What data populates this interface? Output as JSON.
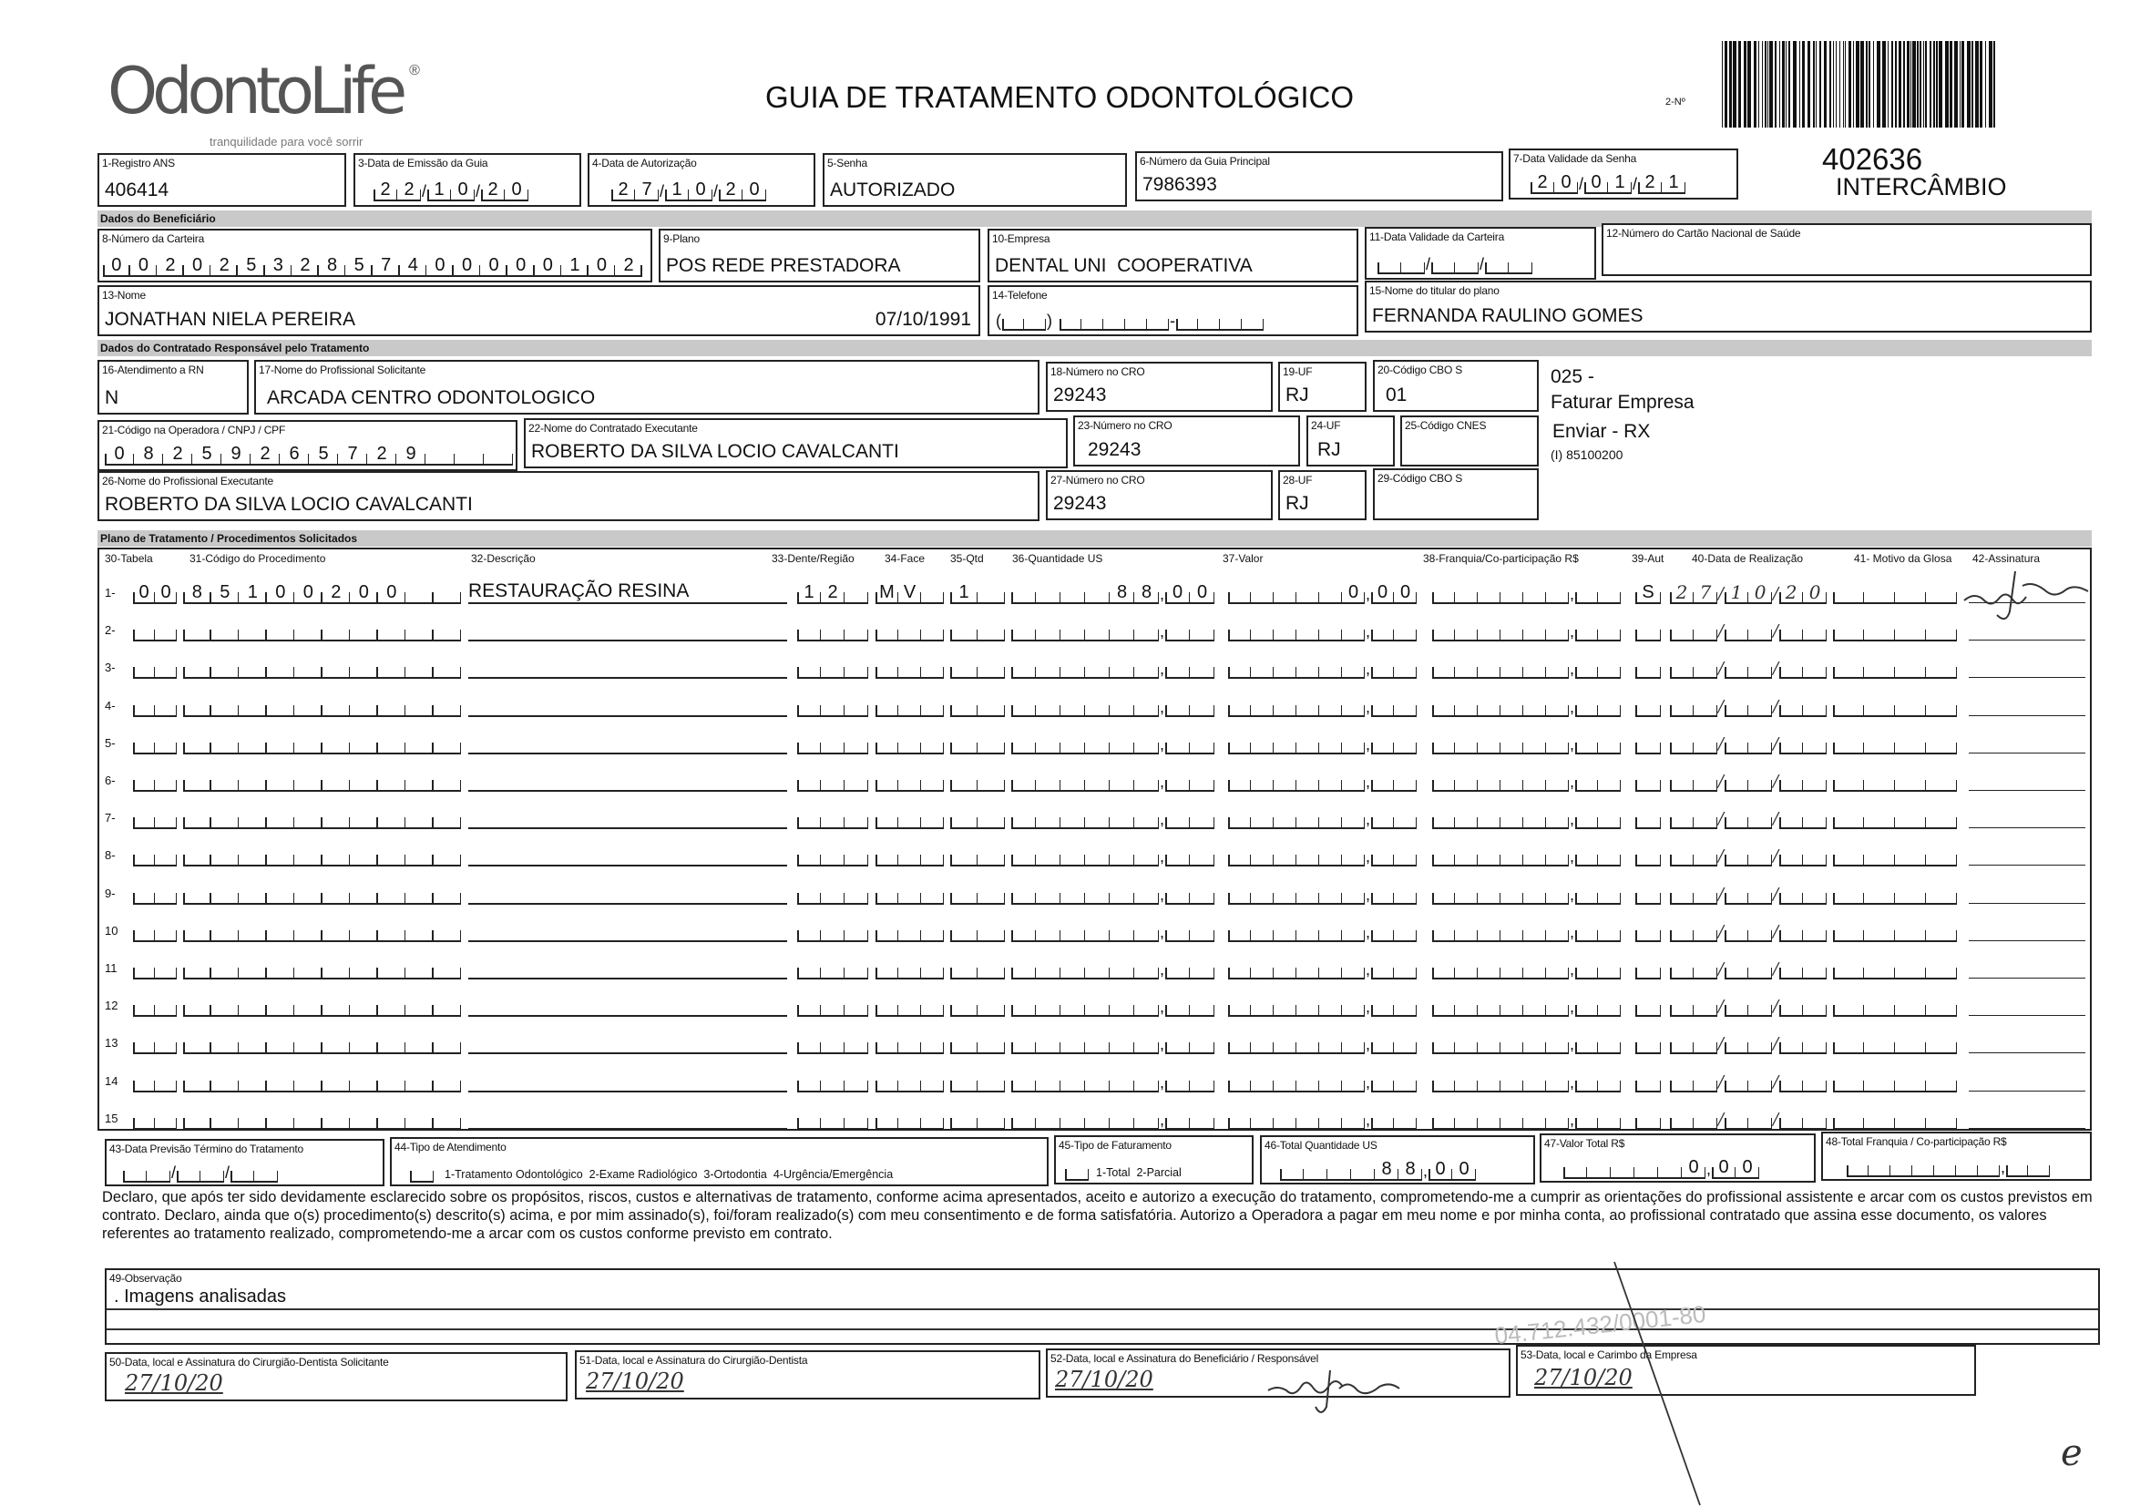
{
  "logo": {
    "brand": "OdontoLife",
    "registered": "®",
    "tagline": "tranquilidade para você sorrir"
  },
  "header": {
    "title": "GUIA DE TRATAMENTO ODONTOLÓGICO",
    "guide_number_label": "2-Nº",
    "side_number": "402636",
    "side_tag": "INTERCÂMBIO"
  },
  "fields": {
    "f1": {
      "label": "1-Registro ANS",
      "value": "406414"
    },
    "f3": {
      "label": "3-Data de Emissão da Guia",
      "value": [
        "22",
        "10",
        "20"
      ]
    },
    "f4": {
      "label": "4-Data de Autorização",
      "value": [
        "27",
        "10",
        "20"
      ]
    },
    "f5": {
      "label": "5-Senha",
      "value": "AUTORIZADO"
    },
    "f6": {
      "label": "6-Número da Guia Principal",
      "value": "7986393"
    },
    "f7": {
      "label": "7-Data Validade da Senha",
      "value": [
        "20",
        "01",
        "21"
      ]
    },
    "f8": {
      "label": "8-Número da Carteira",
      "value": [
        "00202532857400000102"
      ]
    },
    "f9": {
      "label": "9-Plano",
      "value": "POS REDE PRESTADORA"
    },
    "f10": {
      "label": "10-Empresa",
      "value": "DENTAL UNI  COOPERATIVA"
    },
    "f11": {
      "label": "11-Data Validade da Carteira",
      "value": [
        "",
        "",
        ""
      ]
    },
    "f12": {
      "label": "12-Número do Cartão Nacional de Saúde",
      "value": ""
    },
    "f13": {
      "label": "13-Nome",
      "value": "JONATHAN NIELA PEREIRA",
      "birth_date": "07/10/1991"
    },
    "f14": {
      "label": "14-Telefone",
      "value": [
        "",
        "",
        ""
      ]
    },
    "f15": {
      "label": "15-Nome do titular do plano",
      "value": "FERNANDA RAULINO GOMES"
    },
    "f16": {
      "label": "16-Atendimento a RN",
      "value": "N"
    },
    "f17": {
      "label": "17-Nome do Profissional Solicitante",
      "value": "ARCADA CENTRO ODONTOLOGICO"
    },
    "f18": {
      "label": "18-Número no CRO",
      "value": "29243"
    },
    "f19": {
      "label": "19-UF",
      "value": "RJ"
    },
    "f20": {
      "label": "20-Código CBO S",
      "value": "01"
    },
    "f21": {
      "label": "21-Código na Operadora / CNPJ / CPF",
      "value": [
        "08259265729"
      ]
    },
    "f22": {
      "label": "22-Nome do Contratado Executante",
      "value": "ROBERTO DA SILVA LOCIO CAVALCANTI"
    },
    "f23": {
      "label": "23-Número no CRO",
      "value": "29243"
    },
    "f24": {
      "label": "24-UF",
      "value": "RJ"
    },
    "f25": {
      "label": "25-Código CNES",
      "value": ""
    },
    "f26": {
      "label": "26-Nome do Profissional Executante",
      "value": "ROBERTO DA SILVA LOCIO CAVALCANTI"
    },
    "f27": {
      "label": "27-Número no CRO",
      "value": "29243"
    },
    "f28": {
      "label": "28-UF",
      "value": "RJ"
    },
    "f29": {
      "label": "29-Código CBO S",
      "value": ""
    }
  },
  "sections": {
    "beneficiario": "Dados do Beneficiário",
    "contratado": "Dados do Contratado Responsável pelo Tratamento",
    "plano": "Plano de Tratamento / Procedimentos Solicitados"
  },
  "side_notes": [
    "025 -",
    "Faturar Empresa",
    "Enviar - RX",
    "(I) 85100200"
  ],
  "procedures": {
    "columns": [
      "30-Tabela",
      "31-Código do Procedimento",
      "32-Descrição",
      "33-Dente/Região",
      "34-Face",
      "35-Qtd",
      "36-Quantidade US",
      "37-Valor",
      "38-Franquia/Co-participação R$",
      "39-Aut",
      "40-Data de Realização",
      "41- Motivo da Glosa",
      "42-Assinatura"
    ],
    "rows": [
      {
        "n": "1-",
        "tabela": [
          "00"
        ],
        "codigo": [
          "85100200"
        ],
        "descricao": "RESTAURAÇÃO RESINA",
        "dente": "12",
        "face": "MV",
        "qtd": [
          "1"
        ],
        "qtd_us": [
          "88",
          "00"
        ],
        "valor": [
          "0",
          "00"
        ],
        "franquia": [
          "",
          ""
        ],
        "aut": "S",
        "data": [
          "27",
          "10",
          "20"
        ],
        "glosa": [
          ""
        ],
        "signed": true
      },
      {
        "n": "2-"
      },
      {
        "n": "3-"
      },
      {
        "n": "4-"
      },
      {
        "n": "5-"
      },
      {
        "n": "6-"
      },
      {
        "n": "7-"
      },
      {
        "n": "8-"
      },
      {
        "n": "9-"
      },
      {
        "n": "10"
      },
      {
        "n": "11"
      },
      {
        "n": "12"
      },
      {
        "n": "13"
      },
      {
        "n": "14"
      },
      {
        "n": "15"
      }
    ]
  },
  "totals": {
    "f43": {
      "label": "43-Data Previsão Término do Tratamento",
      "value": [
        "",
        "",
        ""
      ]
    },
    "f44": {
      "label": "44-Tipo de Atendimento",
      "options": "1-Tratamento Odontológico  2-Exame Radiológico  3-Ortodontia  4-Urgência/Emergência",
      "value": ""
    },
    "f45": {
      "label": "45-Tipo de Faturamento",
      "options": "1-Total  2-Parcial",
      "value": ""
    },
    "f46": {
      "label": "46-Total Quantidade US",
      "value": [
        "88",
        "00"
      ]
    },
    "f47": {
      "label": "47-Valor Total R$",
      "value": [
        "0",
        "00"
      ]
    },
    "f48": {
      "label": "48-Total Franquia / Co-participação R$",
      "value": [
        "",
        ""
      ]
    }
  },
  "declaration": "Declaro, que após ter sido devidamente esclarecido sobre os propósitos, riscos, custos e alternativas de tratamento, conforme acima apresentados, aceito e autorizo a execução do tratamento, comprometendo-me a cumprir as orientações do profissional assistente e arcar com os custos previstos em contrato. Declaro, ainda que o(s) procedimento(s) descrito(s) acima, e por mim assinado(s), foi/foram realizado(s) com meu consentimento e de forma satisfatória. Autorizo a Operadora a pagar em meu nome e por minha conta, ao profissional contratado que assina esse documento, os valores referentes ao tratamento realizado, comprometendo-me a arcar com os custos conforme previsto em contrato.",
  "observation": {
    "label": "49-Observação",
    "value": ". Imagens analisadas"
  },
  "signatures": {
    "f50": {
      "label": "50-Data, local e Assinatura do Cirurgião-Dentista Solicitante",
      "date": "27/10/20"
    },
    "f51": {
      "label": "51-Data, local e Assinatura do Cirurgião-Dentista",
      "date": "27/10/20"
    },
    "f52": {
      "label": "52-Data, local e Assinatura do Beneficiário / Responsável",
      "date": "27/10/20"
    },
    "f53": {
      "label": "53-Data, local e Carimbo da Empresa",
      "date": "27/10/20"
    }
  },
  "stamp": "04.712.432/0001-80",
  "corner_mark": "e"
}
